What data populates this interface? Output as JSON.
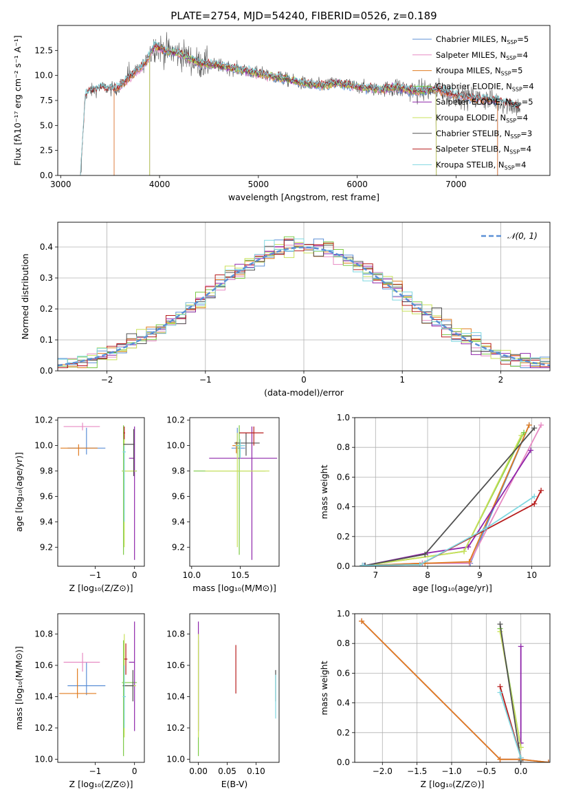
{
  "figure_title": "PLATE=2754, MJD=54240, FIBERID=0526, z=0.189",
  "palette": {
    "chabrier_miles": "#5b8fd6",
    "salpeter_miles": "#e78ac3",
    "kroupa_miles": "#e07b1f",
    "chabrier_elodie": "#7ac943",
    "salpeter_elodie": "#8e24aa",
    "kroupa_elodie": "#c8e05a",
    "chabrier_stelib": "#505050",
    "salpeter_stelib": "#b71c1c",
    "kroupa_stelib": "#7fd7e0",
    "gaussian": "#5b8fd6"
  },
  "chart_data": [
    {
      "id": "spectrum",
      "type": "line",
      "xlabel": "wavelength [Angstrom, rest frame]",
      "ylabel": "Flux [fλ10⁻¹⁷ erg cm⁻² s⁻¹ A⁻¹]",
      "xlim": [
        2970,
        7950
      ],
      "ylim": [
        0,
        15
      ],
      "xticks": [
        3000,
        4000,
        5000,
        6000,
        7000
      ],
      "yticks": [
        0.0,
        2.5,
        5.0,
        7.5,
        10.0,
        12.5
      ],
      "legend_position": "upper right",
      "legend": [
        "Chabrier MILES, N_SSP=5",
        "Salpeter MILES, N_SSP=4",
        "Kroupa MILES, N_SSP=5",
        "Chabrier ELODIE, N_SSP=4",
        "Salpeter ELODIE, N_SSP=5",
        "Kroupa ELODIE, N_SSP=4",
        "Chabrier STELIB, N_SSP=3",
        "Salpeter STELIB, N_SSP=4",
        "Kroupa STELIB, N_SSP=4"
      ],
      "data_trend": {
        "x": [
          3200,
          3250,
          3400,
          3550,
          3700,
          3850,
          3950,
          4050,
          4200,
          4400,
          4600,
          4800,
          5000,
          5200,
          5400,
          5600,
          5800,
          6000,
          6200,
          6400,
          6600,
          6800,
          7000,
          7200,
          7400,
          7650
        ],
        "y": [
          0,
          8.2,
          8.8,
          8.6,
          9.8,
          11.2,
          13.0,
          12.5,
          12.2,
          11.2,
          11.0,
          10.6,
          10.2,
          9.8,
          9.3,
          9.0,
          9.2,
          8.9,
          8.6,
          8.8,
          8.4,
          8.6,
          8.0,
          7.7,
          7.5,
          6.8
        ]
      },
      "model_starts": {
        "MILES": 3540,
        "ELODIE": 3900,
        "STELIB": 3200
      },
      "model_ends": {
        "ELODIE": 6800,
        "MILES": 7420,
        "STELIB": 7650
      }
    },
    {
      "id": "residuals",
      "type": "line",
      "xlabel": "(data-model)/error",
      "ylabel": "Normed distribution",
      "xlim": [
        -2.5,
        2.5
      ],
      "ylim": [
        0,
        0.48
      ],
      "xticks": [
        -2,
        -1,
        0,
        1,
        2
      ],
      "yticks": [
        0.0,
        0.1,
        0.2,
        0.3,
        0.4
      ],
      "grid": true,
      "legend": [
        "𝒩(0, 1)"
      ],
      "legend_position": "upper right",
      "gaussian": {
        "mu": 0,
        "sigma": 1
      }
    },
    {
      "id": "age_vs_Z",
      "type": "scatter",
      "xlabel": "Z [log₁₀(Z/Z⊙)]",
      "ylabel": "age  [log₁₀(age/yr)]",
      "xlim": [
        -1.95,
        0.25
      ],
      "ylim": [
        9.05,
        10.22
      ],
      "xticks": [
        -1,
        0
      ],
      "yticks": [
        9.2,
        9.4,
        9.6,
        9.8,
        10.0,
        10.2
      ],
      "points": [
        {
          "model": "chabrier_miles",
          "x": -1.22,
          "xerr": [
            0.48,
            0.48
          ],
          "y": 9.98,
          "yerr": [
            0.05,
            0.16
          ]
        },
        {
          "model": "salpeter_miles",
          "x": -1.32,
          "xerr": [
            0.48,
            0.44
          ],
          "y": 10.15,
          "yerr": [
            0.03,
            0.03
          ]
        },
        {
          "model": "kroupa_miles",
          "x": -1.42,
          "xerr": [
            0.46,
            0.48
          ],
          "y": 9.98,
          "yerr": [
            0.06,
            0.03
          ]
        },
        {
          "model": "chabrier_elodie",
          "x": -0.28,
          "xerr": [
            0.04,
            0.34
          ],
          "y": 9.8,
          "yerr": [
            0.66,
            0.36
          ]
        },
        {
          "model": "salpeter_elodie",
          "x": 0.0,
          "xerr": [
            0.14,
            0.0
          ],
          "y": 9.9,
          "yerr": [
            0.8,
            0.25
          ]
        },
        {
          "model": "kroupa_elodie",
          "x": -0.26,
          "xerr": [
            0.04,
            0.3
          ],
          "y": 9.8,
          "yerr": [
            0.6,
            0.3
          ]
        },
        {
          "model": "chabrier_stelib",
          "x": -0.02,
          "xerr": [
            0.26,
            0.02
          ],
          "y": 10.01,
          "yerr": [
            0.25,
            0.12
          ]
        },
        {
          "model": "salpeter_stelib",
          "x": -0.26,
          "xerr": [
            0.02,
            0.02
          ],
          "y": 10.1,
          "yerr": [
            0.05,
            0.05
          ]
        },
        {
          "model": "kroupa_stelib",
          "x": -0.26,
          "xerr": [
            0.04,
            0.04
          ],
          "y": 9.95,
          "yerr": [
            0.55,
            0.05
          ]
        }
      ]
    },
    {
      "id": "age_vs_mass",
      "type": "scatter",
      "xlabel": "mass [log₁₀(M/M⊙)]",
      "ylabel": "",
      "xlim": [
        9.98,
        10.9
      ],
      "ylim": [
        9.05,
        10.22
      ],
      "xticks": [
        10.0,
        10.5
      ],
      "yticks": [
        9.2,
        9.4,
        9.6,
        9.8,
        10.0,
        10.2
      ],
      "points": [
        {
          "model": "chabrier_miles",
          "x": 10.47,
          "xerr": [
            0.06,
            0.08
          ],
          "y": 9.98,
          "yerr": [
            0.05,
            0.16
          ]
        },
        {
          "model": "salpeter_miles",
          "x": 10.5,
          "xerr": [
            0.05,
            0.05
          ],
          "y": 10.0,
          "yerr": [
            0.05,
            0.05
          ]
        },
        {
          "model": "kroupa_miles",
          "x": 10.46,
          "xerr": [
            0.04,
            0.06
          ],
          "y": 10.0,
          "yerr": [
            0.06,
            0.03
          ]
        },
        {
          "model": "chabrier_elodie",
          "x": 10.49,
          "xerr": [
            0.47,
            0.27
          ],
          "y": 9.8,
          "yerr": [
            0.66,
            0.36
          ]
        },
        {
          "model": "salpeter_elodie",
          "x": 10.62,
          "xerr": [
            0.44,
            0.26
          ],
          "y": 9.9,
          "yerr": [
            0.8,
            0.25
          ]
        },
        {
          "model": "kroupa_elodie",
          "x": 10.47,
          "xerr": [
            0.33,
            0.33
          ],
          "y": 9.8,
          "yerr": [
            0.6,
            0.3
          ]
        },
        {
          "model": "chabrier_stelib",
          "x": 10.56,
          "xerr": [
            0.12,
            0.14
          ],
          "y": 10.02,
          "yerr": [
            0.1,
            0.08
          ]
        },
        {
          "model": "salpeter_stelib",
          "x": 10.64,
          "xerr": [
            0.15,
            0.1
          ],
          "y": 10.1,
          "yerr": [
            0.1,
            0.05
          ]
        },
        {
          "model": "kroupa_stelib",
          "x": 10.5,
          "xerr": [
            0.05,
            0.05
          ],
          "y": 10.0,
          "yerr": [
            0.1,
            0.05
          ]
        }
      ]
    },
    {
      "id": "mass_weight_vs_age",
      "type": "line",
      "xlabel": "age  [log₁₀(age/yr)]",
      "ylabel": "mass weight",
      "xlim": [
        6.6,
        10.35
      ],
      "ylim": [
        0,
        1.0
      ],
      "xticks": [
        7,
        8,
        9,
        10
      ],
      "yticks": [
        0.0,
        0.2,
        0.4,
        0.6,
        0.8,
        1.0
      ],
      "grid": true,
      "series": [
        {
          "model": "chabrier_miles",
          "x": [
            6.78,
            7.9,
            8.82,
            9.95
          ],
          "y": [
            0.005,
            0.02,
            0.02,
            0.95
          ]
        },
        {
          "model": "salpeter_miles",
          "x": [
            6.8,
            7.9,
            8.8,
            10.18
          ],
          "y": [
            0.005,
            0.02,
            0.02,
            0.95
          ]
        },
        {
          "model": "kroupa_miles",
          "x": [
            6.8,
            7.95,
            8.8,
            9.95
          ],
          "y": [
            0.005,
            0.02,
            0.03,
            0.95
          ]
        },
        {
          "model": "chabrier_elodie",
          "x": [
            6.8,
            8.7,
            9.85
          ],
          "y": [
            0.005,
            0.1,
            0.9
          ]
        },
        {
          "model": "salpeter_elodie",
          "x": [
            6.8,
            8.0,
            8.78,
            9.98
          ],
          "y": [
            0.005,
            0.09,
            0.13,
            0.78
          ]
        },
        {
          "model": "kroupa_elodie",
          "x": [
            6.8,
            8.7,
            9.8
          ],
          "y": [
            0.005,
            0.1,
            0.88
          ]
        },
        {
          "model": "chabrier_stelib",
          "x": [
            6.8,
            7.95,
            10.05
          ],
          "y": [
            0.005,
            0.08,
            0.93
          ]
        },
        {
          "model": "salpeter_stelib",
          "x": [
            6.75,
            7.85,
            10.05,
            10.18
          ],
          "y": [
            0.005,
            0.01,
            0.42,
            0.51
          ]
        },
        {
          "model": "kroupa_stelib",
          "x": [
            6.75,
            7.85,
            9.1,
            10.05
          ],
          "y": [
            0.005,
            0.01,
            0.25,
            0.47
          ]
        }
      ]
    },
    {
      "id": "mass_vs_Z",
      "type": "scatter",
      "xlabel": "Z [log₁₀(Z/Z⊙)]",
      "ylabel": "mass [log₁₀(M/M⊙)]",
      "xlim": [
        -1.95,
        0.25
      ],
      "ylim": [
        9.98,
        10.93
      ],
      "xticks": [
        -1,
        0
      ],
      "yticks": [
        10.0,
        10.2,
        10.4,
        10.6,
        10.8
      ],
      "points": [
        {
          "model": "chabrier_miles",
          "x": -1.22,
          "xerr": [
            0.48,
            0.48
          ],
          "y": 10.47,
          "yerr": [
            0.06,
            0.15
          ]
        },
        {
          "model": "salpeter_miles",
          "x": -1.32,
          "xerr": [
            0.48,
            0.44
          ],
          "y": 10.62,
          "yerr": [
            0.06,
            0.06
          ]
        },
        {
          "model": "kroupa_miles",
          "x": -1.45,
          "xerr": [
            0.46,
            0.48
          ],
          "y": 10.42,
          "yerr": [
            0.03,
            0.16
          ]
        },
        {
          "model": "chabrier_elodie",
          "x": -0.28,
          "xerr": [
            0.04,
            0.34
          ],
          "y": 10.49,
          "yerr": [
            0.47,
            0.27
          ]
        },
        {
          "model": "salpeter_elodie",
          "x": 0.0,
          "xerr": [
            0.14,
            0.0
          ],
          "y": 10.62,
          "yerr": [
            0.44,
            0.26
          ]
        },
        {
          "model": "kroupa_elodie",
          "x": -0.26,
          "xerr": [
            0.04,
            0.3
          ],
          "y": 10.47,
          "yerr": [
            0.33,
            0.33
          ]
        },
        {
          "model": "chabrier_stelib",
          "x": -0.04,
          "xerr": [
            0.26,
            0.02
          ],
          "y": 10.47,
          "yerr": [
            0.1,
            0.1
          ]
        },
        {
          "model": "salpeter_stelib",
          "x": -0.22,
          "xerr": [
            0.04,
            0.04
          ],
          "y": 10.64,
          "yerr": [
            0.1,
            0.1
          ]
        },
        {
          "model": "kroupa_stelib",
          "x": -0.26,
          "xerr": [
            0.04,
            0.04
          ],
          "y": 10.4,
          "yerr": [
            0.2,
            0.2
          ]
        }
      ]
    },
    {
      "id": "mass_vs_ebv",
      "type": "scatter",
      "xlabel": "E(B-V)",
      "ylabel": "",
      "xlim": [
        -0.015,
        0.14
      ],
      "ylim": [
        9.98,
        10.93
      ],
      "xticks": [
        0.0,
        0.05,
        0.1
      ],
      "yticks": [
        10.0,
        10.2,
        10.4,
        10.6,
        10.8
      ],
      "points": [
        {
          "model": "chabrier_elodie",
          "x": 0.0,
          "xerr": [
            0,
            0
          ],
          "y": 10.49,
          "yerr": [
            0.47,
            0.27
          ]
        },
        {
          "model": "salpeter_elodie",
          "x": 0.0,
          "xerr": [
            0,
            0
          ],
          "y": 10.62,
          "yerr": [
            0.44,
            0.26
          ]
        },
        {
          "model": "kroupa_elodie",
          "x": 0.0,
          "xerr": [
            0,
            0
          ],
          "y": 10.47,
          "yerr": [
            0.33,
            0.33
          ]
        },
        {
          "model": "salpeter_stelib",
          "x": 0.065,
          "xerr": [
            0,
            0
          ],
          "y": 10.57,
          "yerr": [
            0.15,
            0.16
          ]
        },
        {
          "model": "chabrier_stelib",
          "x": 0.134,
          "xerr": [
            0,
            0
          ],
          "y": 10.47,
          "yerr": [
            0.1,
            0.1
          ]
        },
        {
          "model": "kroupa_stelib",
          "x": 0.134,
          "xerr": [
            0,
            0
          ],
          "y": 10.4,
          "yerr": [
            0.14,
            0.14
          ]
        }
      ]
    },
    {
      "id": "mass_weight_vs_Z",
      "type": "line",
      "xlabel": "Z [log₁₀(Z/Z⊙)]",
      "ylabel": "mass weight",
      "xlim": [
        -2.4,
        0.42
      ],
      "ylim": [
        0,
        1.0
      ],
      "xticks": [
        -2.0,
        -1.5,
        -1.0,
        -0.5,
        0.0
      ],
      "yticks": [
        0.0,
        0.2,
        0.4,
        0.6,
        0.8,
        1.0
      ],
      "grid": true,
      "series": [
        {
          "model": "chabrier_miles",
          "x": [
            -2.3,
            -0.3,
            0.0,
            0.4
          ],
          "y": [
            0.95,
            0.02,
            0.02,
            0.0
          ]
        },
        {
          "model": "salpeter_miles",
          "x": [
            -2.3,
            -0.3,
            0.0,
            0.4
          ],
          "y": [
            0.95,
            0.02,
            0.02,
            0.0
          ]
        },
        {
          "model": "kroupa_miles",
          "x": [
            -2.3,
            -0.3,
            0.0,
            0.4
          ],
          "y": [
            0.95,
            0.02,
            0.02,
            0.0
          ]
        },
        {
          "model": "chabrier_elodie",
          "x": [
            -0.3,
            0.0
          ],
          "y": [
            0.9,
            0.1
          ]
        },
        {
          "model": "salpeter_elodie",
          "x": [
            0.0,
            0.0
          ],
          "y": [
            0.78,
            0.13
          ]
        },
        {
          "model": "kroupa_elodie",
          "x": [
            -0.3,
            0.0
          ],
          "y": [
            0.88,
            0.1
          ]
        },
        {
          "model": "chabrier_stelib",
          "x": [
            -0.3,
            0.0
          ],
          "y": [
            0.93,
            0.01
          ]
        },
        {
          "model": "salpeter_stelib",
          "x": [
            -0.3,
            0.0
          ],
          "y": [
            0.51,
            0.03
          ]
        },
        {
          "model": "kroupa_stelib",
          "x": [
            -0.3,
            0.0
          ],
          "y": [
            0.47,
            0.03
          ]
        }
      ]
    }
  ]
}
